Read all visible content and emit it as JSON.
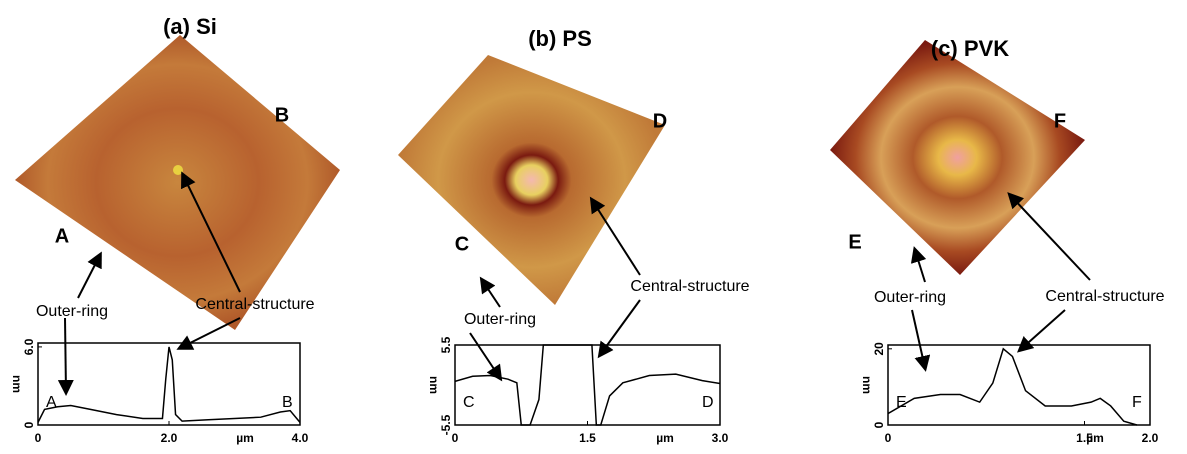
{
  "panels": [
    {
      "title": "(a) Si",
      "corner_labels": [
        "A",
        "B"
      ],
      "annotations": [
        "Outer-ring",
        "Central-structure"
      ],
      "profile": {
        "type": "line",
        "xlabel": "µm",
        "ylabel": "nm",
        "start_label": "A",
        "end_label": "B",
        "xlim": [
          0,
          4
        ],
        "xticks": [
          0,
          {
            "value": 2,
            "label": "2.0"
          },
          {
            "value": 4,
            "label": "4.0"
          }
        ],
        "ylim": [
          0,
          6.3
        ],
        "yticks": [
          0,
          {
            "value": 6,
            "label": "6.0"
          }
        ],
        "x": [
          0,
          0.1,
          0.3,
          0.5,
          0.8,
          1.2,
          1.6,
          1.9,
          1.95,
          2.0,
          2.05,
          2.1,
          2.2,
          2.6,
          3.0,
          3.4,
          3.7,
          3.85,
          3.95,
          4.0
        ],
        "y": [
          0.2,
          1.2,
          1.4,
          1.5,
          1.2,
          0.8,
          0.5,
          0.5,
          3.5,
          6.0,
          5.0,
          0.8,
          0.3,
          0.4,
          0.5,
          0.6,
          1.0,
          1.1,
          0.5,
          0.2
        ]
      }
    },
    {
      "title": "(b) PS",
      "corner_labels": [
        "C",
        "D"
      ],
      "annotations": [
        "Outer-ring",
        "Central-structure"
      ],
      "profile": {
        "type": "line",
        "xlabel": "µm",
        "ylabel": "nm",
        "start_label": "C",
        "end_label": "D",
        "xlim": [
          0,
          3
        ],
        "xticks": [
          0,
          1.5,
          {
            "value": 3,
            "label": "3.0"
          }
        ],
        "ylim": [
          -5.5,
          5.5
        ],
        "yticks": [
          -5.5,
          5.5
        ],
        "x": [
          0,
          0.2,
          0.4,
          0.6,
          0.7,
          0.75,
          0.85,
          0.95,
          1.0,
          1.55,
          1.6,
          1.65,
          1.75,
          1.9,
          2.2,
          2.5,
          2.8,
          3.0
        ],
        "y": [
          0.5,
          1.2,
          1.3,
          0.8,
          0.3,
          -5.5,
          -5.5,
          -2,
          5.5,
          5.5,
          -5.5,
          -5.5,
          -1.5,
          0.3,
          1.3,
          1.5,
          0.6,
          0.2
        ]
      }
    },
    {
      "title": "(c) PVK",
      "corner_labels": [
        "E",
        "F"
      ],
      "annotations": [
        "Outer-ring",
        "Central-structure"
      ],
      "profile": {
        "type": "line",
        "xlabel": "µm",
        "ylabel": "nm",
        "start_label": "E",
        "end_label": "F",
        "xlim": [
          0,
          2
        ],
        "xticks": [
          0,
          1.5,
          {
            "value": 2,
            "label": "2.0"
          }
        ],
        "ylim": [
          0,
          21
        ],
        "yticks": [
          0,
          20
        ],
        "x": [
          0,
          0.2,
          0.4,
          0.55,
          0.7,
          0.8,
          0.88,
          0.95,
          1.05,
          1.2,
          1.4,
          1.55,
          1.62,
          1.7,
          1.8,
          1.9
        ],
        "y": [
          3,
          7,
          8,
          8,
          6,
          11,
          20,
          18,
          9,
          5,
          5,
          6,
          7,
          5,
          1,
          0
        ]
      }
    }
  ]
}
